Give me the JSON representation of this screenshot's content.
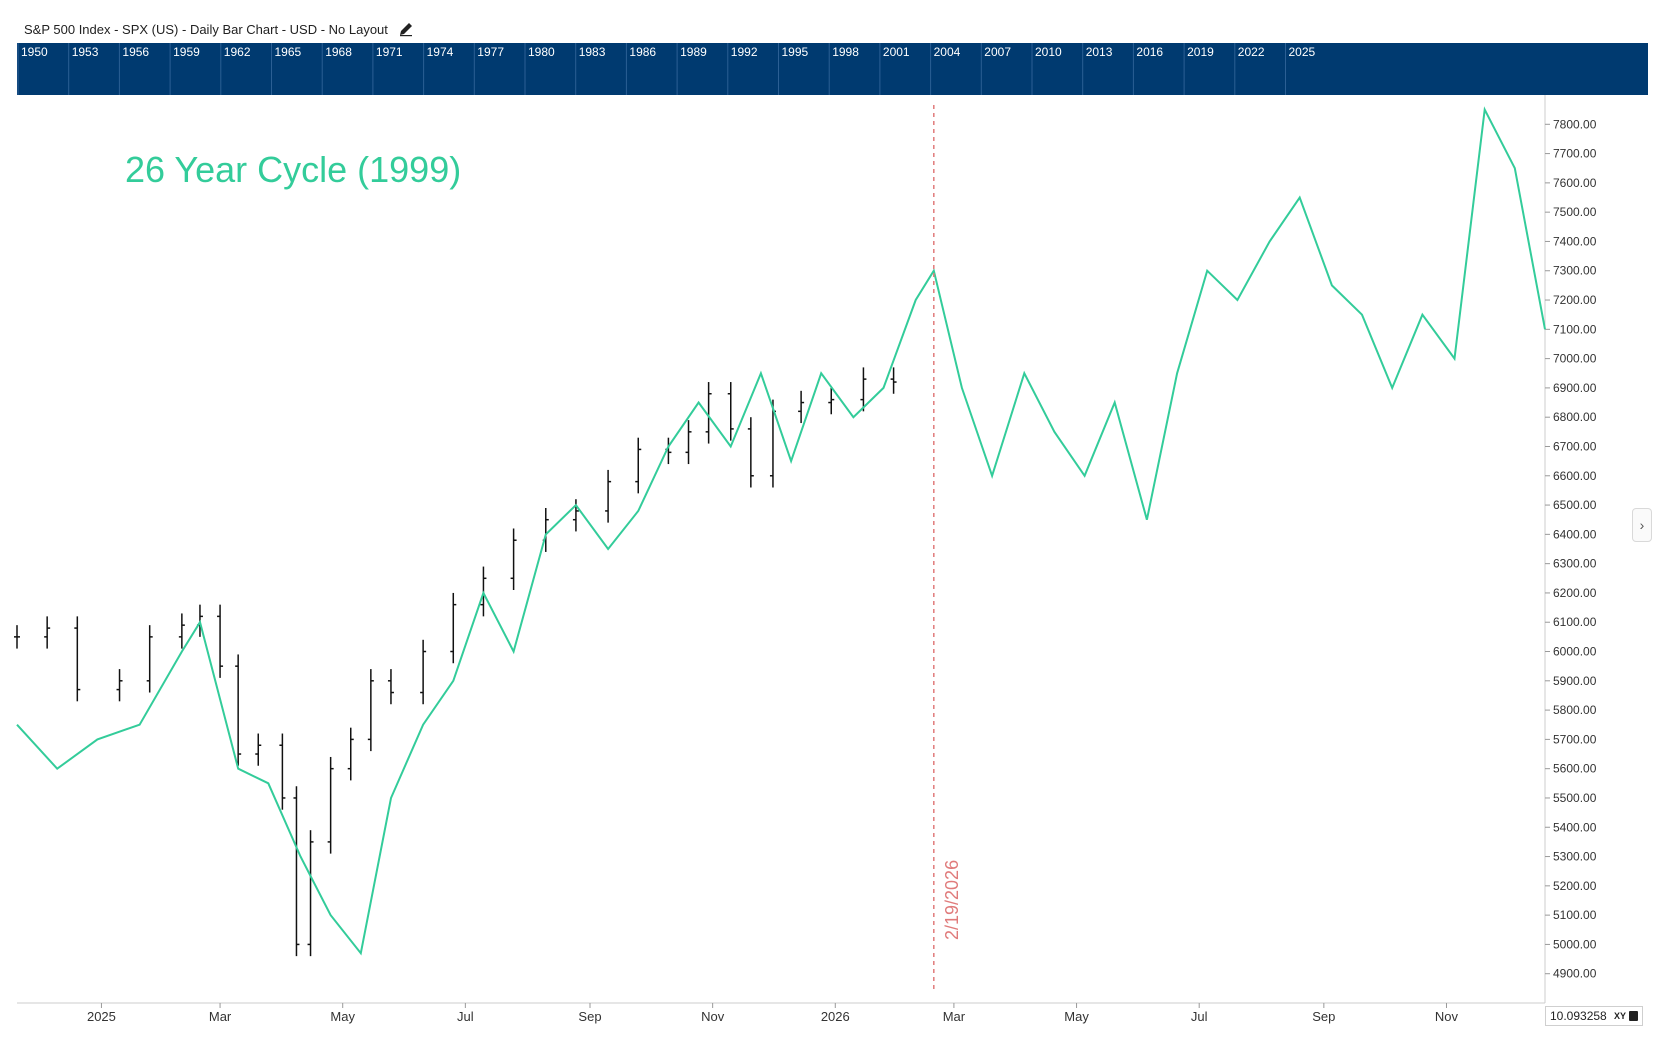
{
  "header": {
    "title": "S&P 500 Index - SPX (US) - Daily Bar Chart - USD - No Layout",
    "edit_icon": "pencil-icon"
  },
  "navigator": {
    "years": [
      "1950",
      "1953",
      "1956",
      "1959",
      "1962",
      "1965",
      "1968",
      "1971",
      "1974",
      "1977",
      "1980",
      "1983",
      "1986",
      "1989",
      "1992",
      "1995",
      "1998",
      "2001",
      "2004",
      "2007",
      "2010",
      "2013",
      "2016",
      "2019",
      "2022",
      "2025"
    ],
    "background_color": "#003a70"
  },
  "chart_data": {
    "type": "line",
    "title": "26 Year Cycle (1999)",
    "vertical_marker": {
      "date": "2026-02-19",
      "label": "2/19/2026",
      "color": "#e07b7b"
    },
    "x_ticks": [
      "2025",
      "Mar",
      "May",
      "Jul",
      "Sep",
      "Nov",
      "2026",
      "Mar",
      "May",
      "Jul",
      "Sep",
      "Nov"
    ],
    "y_ticks": [
      "4900.00",
      "5000.00",
      "5100.00",
      "5200.00",
      "5300.00",
      "5400.00",
      "5500.00",
      "5600.00",
      "5700.00",
      "5800.00",
      "5900.00",
      "6000.00",
      "6100.00",
      "6200.00",
      "6300.00",
      "6400.00",
      "6500.00",
      "6600.00",
      "6700.00",
      "6800.00",
      "6900.00",
      "7000.00",
      "7100.00",
      "7200.00",
      "7300.00",
      "7400.00",
      "7500.00",
      "7600.00",
      "7700.00",
      "7800.00"
    ],
    "ylim": [
      4800,
      7900
    ],
    "x_range": [
      "2024-11-20",
      "2026-12-20"
    ],
    "series": [
      {
        "name": "",
        "kind": "ohlc-bars",
        "color": "#111111",
        "x": [
          "2024-11-20",
          "2024-12-05",
          "2024-12-20",
          "2025-01-10",
          "2025-01-25",
          "2025-02-10",
          "2025-02-19",
          "2025-03-01",
          "2025-03-10",
          "2025-03-20",
          "2025-04-01",
          "2025-04-08",
          "2025-04-15",
          "2025-04-25",
          "2025-05-05",
          "2025-05-15",
          "2025-05-25",
          "2025-06-10",
          "2025-06-25",
          "2025-07-10",
          "2025-07-25",
          "2025-08-10",
          "2025-08-25",
          "2025-09-10",
          "2025-09-25",
          "2025-10-10",
          "2025-10-20",
          "2025-10-30",
          "2025-11-10",
          "2025-11-20",
          "2025-12-01",
          "2025-12-15",
          "2025-12-30",
          "2026-01-15",
          "2026-01-30"
        ],
        "close": [
          6050,
          6080,
          5870,
          5900,
          6050,
          6090,
          6120,
          5950,
          5650,
          5680,
          5500,
          5000,
          5350,
          5600,
          5700,
          5900,
          5860,
          6000,
          6160,
          6250,
          6380,
          6450,
          6480,
          6580,
          6690,
          6680,
          6750,
          6880,
          6760,
          6600,
          6820,
          6850,
          6860,
          6930,
          6920
        ]
      },
      {
        "name": "",
        "kind": "line",
        "color": "#33cc9a",
        "x": [
          "2024-11-20",
          "2024-12-10",
          "2024-12-30",
          "2025-01-20",
          "2025-02-10",
          "2025-02-19",
          "2025-03-10",
          "2025-03-25",
          "2025-04-10",
          "2025-04-25",
          "2025-05-10",
          "2025-05-25",
          "2025-06-10",
          "2025-06-25",
          "2025-07-10",
          "2025-07-25",
          "2025-08-10",
          "2025-08-25",
          "2025-09-10",
          "2025-09-25",
          "2025-10-10",
          "2025-10-25",
          "2025-11-10",
          "2025-11-25",
          "2025-12-10",
          "2025-12-25",
          "2026-01-10",
          "2026-01-25",
          "2026-02-10",
          "2026-02-19",
          "2026-03-05",
          "2026-03-20",
          "2026-04-05",
          "2026-04-20",
          "2026-05-05",
          "2026-05-20",
          "2026-06-05",
          "2026-06-20",
          "2026-07-05",
          "2026-07-20",
          "2026-08-05",
          "2026-08-20",
          "2026-09-05",
          "2026-09-20",
          "2026-10-05",
          "2026-10-20",
          "2026-11-05",
          "2026-11-20",
          "2026-12-05",
          "2026-12-20"
        ],
        "values": [
          5750,
          5600,
          5700,
          5750,
          6000,
          6100,
          5600,
          5550,
          5300,
          5100,
          4970,
          5500,
          5750,
          5900,
          6200,
          6000,
          6400,
          6500,
          6350,
          6480,
          6700,
          6850,
          6700,
          6950,
          6650,
          6950,
          6800,
          6900,
          7200,
          7300,
          6900,
          6600,
          6950,
          6750,
          6600,
          6850,
          6450,
          6950,
          7300,
          7200,
          7400,
          7550,
          7250,
          7150,
          6900,
          7150,
          7000,
          7850,
          7650,
          7100
        ]
      }
    ],
    "grid": false,
    "axis_position": "right"
  },
  "footer": {
    "scale_value": "10.093258",
    "scale_mode": "XY",
    "lock_icon": "lock-icon"
  },
  "expand_icon": "chevron-right-icon"
}
